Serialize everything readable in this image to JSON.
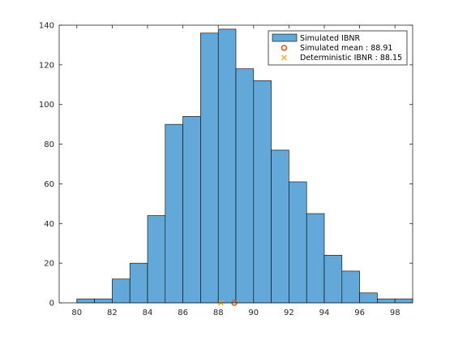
{
  "chart_data": {
    "type": "bar",
    "title": "",
    "xlabel": "",
    "ylabel": "",
    "xlim": [
      79,
      99
    ],
    "ylim": [
      0,
      140
    ],
    "xticks": [
      80,
      82,
      84,
      86,
      88,
      90,
      92,
      94,
      96,
      98
    ],
    "yticks": [
      0,
      20,
      40,
      60,
      80,
      100,
      120,
      140
    ],
    "bin_width": 1,
    "bins": [
      {
        "start": 80,
        "count": 2
      },
      {
        "start": 81,
        "count": 2
      },
      {
        "start": 82,
        "count": 12
      },
      {
        "start": 83,
        "count": 20
      },
      {
        "start": 84,
        "count": 44
      },
      {
        "start": 85,
        "count": 90
      },
      {
        "start": 86,
        "count": 94
      },
      {
        "start": 87,
        "count": 136
      },
      {
        "start": 88,
        "count": 138
      },
      {
        "start": 89,
        "count": 118
      },
      {
        "start": 90,
        "count": 112
      },
      {
        "start": 91,
        "count": 77
      },
      {
        "start": 92,
        "count": 61
      },
      {
        "start": 93,
        "count": 45
      },
      {
        "start": 94,
        "count": 24
      },
      {
        "start": 95,
        "count": 16
      },
      {
        "start": 96,
        "count": 5
      },
      {
        "start": 97,
        "count": 2
      },
      {
        "start": 98,
        "count": 2
      }
    ],
    "markers": [
      {
        "name": "Simulated mean : 88.91",
        "x": 88.91,
        "y": 0,
        "symbol": "circle",
        "color": "#D95319"
      },
      {
        "name": "Deterministic IBNR : 88.15",
        "x": 88.15,
        "y": 0,
        "symbol": "cross",
        "color": "#EDB120"
      }
    ],
    "legend": {
      "position": "top-right",
      "entries": [
        "Simulated IBNR",
        "Simulated mean : 88.91",
        "Deterministic IBNR : 88.15"
      ]
    },
    "colors": {
      "bar_fill": "#62A9D9",
      "bar_edge": "#000000",
      "axis": "#262626"
    },
    "grid": false
  }
}
